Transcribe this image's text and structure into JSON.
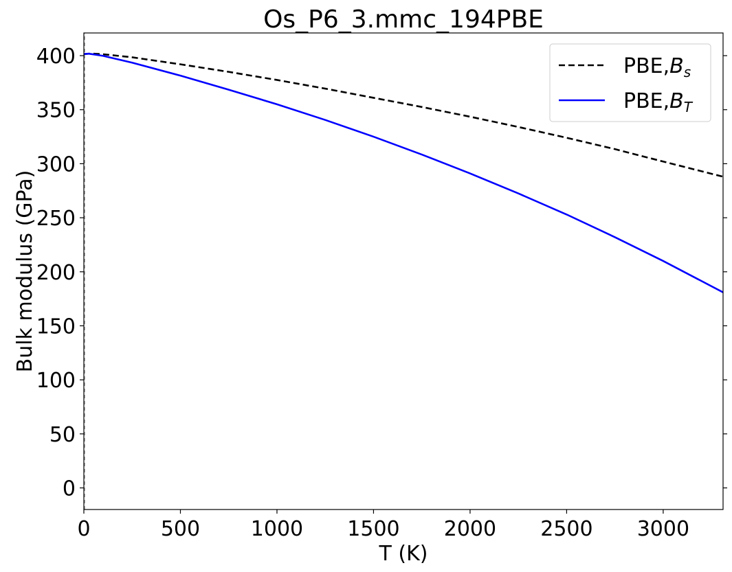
{
  "chart_data": {
    "type": "line",
    "title": "Os_P6_3.mmc_194PBE",
    "xlabel": "T (K)",
    "ylabel": "Bulk modulus (GPa)",
    "xlim": [
      0,
      3310
    ],
    "ylim": [
      -20,
      421
    ],
    "xticks": [
      0,
      500,
      1000,
      1500,
      2000,
      2500,
      3000
    ],
    "yticks": [
      0,
      50,
      100,
      150,
      200,
      250,
      300,
      350,
      400
    ],
    "grid": false,
    "legend_position": "top-right",
    "series": [
      {
        "name": "PBE,Bs",
        "name_base": "PBE,",
        "name_symbol": "B",
        "name_sub": "s",
        "style": "dashed",
        "color": "#000000",
        "x": [
          0,
          25,
          50,
          100,
          250,
          500,
          750,
          1000,
          1250,
          1500,
          1750,
          2000,
          2250,
          2500,
          2750,
          3000,
          3310
        ],
        "y": [
          401.5,
          401.8,
          401.8,
          401.3,
          398.5,
          392,
          385,
          377.5,
          369.5,
          361,
          352.5,
          343.5,
          334,
          324,
          313.5,
          302,
          288
        ]
      },
      {
        "name": "PBE,BT",
        "name_base": "PBE,",
        "name_symbol": "B",
        "name_sub": "T",
        "style": "solid",
        "color": "#0000ff",
        "x": [
          0,
          25,
          50,
          100,
          250,
          500,
          750,
          1000,
          1250,
          1500,
          1750,
          2000,
          2250,
          2500,
          2750,
          3000,
          3310
        ],
        "y": [
          401.5,
          401.8,
          401.2,
          399.8,
          393.5,
          381.5,
          368.5,
          355,
          340.5,
          325,
          308.5,
          291,
          272.5,
          253,
          232,
          210,
          181
        ]
      }
    ],
    "left_edge_series": {
      "style": "dashed",
      "color": "#888888",
      "x": [
        0,
        0
      ],
      "y": [
        -20,
        421
      ]
    }
  }
}
